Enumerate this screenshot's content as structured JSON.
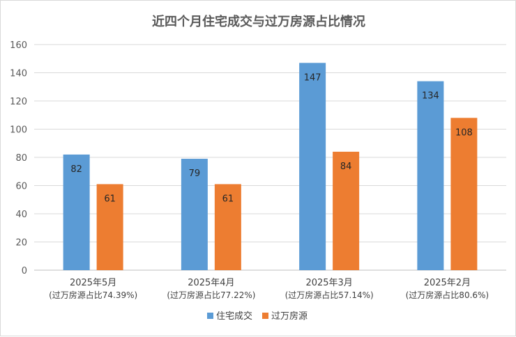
{
  "chart_data": {
    "type": "bar",
    "title": "近四个月住宅成交与过万房源占比情况",
    "categories": [
      "2025年5月",
      "2025年4月",
      "2025年3月",
      "2025年2月"
    ],
    "category_notes": [
      "(过万房源占比74.39%)",
      "(过万房源占比77.22%)",
      "(过万房源占比57.14%)",
      "(过万房源占比80.6%)"
    ],
    "series": [
      {
        "name": "住宅成交",
        "values": [
          82,
          79,
          147,
          134
        ],
        "color": "#5b9bd5"
      },
      {
        "name": "过万房源",
        "values": [
          61,
          61,
          84,
          108
        ],
        "color": "#ed7d31"
      }
    ],
    "ylim": [
      0,
      160
    ],
    "yticks": [
      0,
      20,
      40,
      60,
      80,
      100,
      120,
      140,
      160
    ],
    "grid": true,
    "legend": "bottom"
  }
}
